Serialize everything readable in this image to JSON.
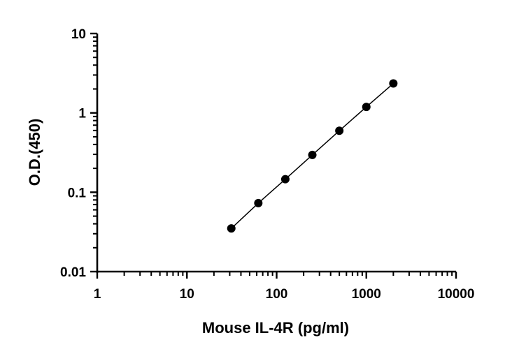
{
  "chart_data": {
    "type": "scatter",
    "title": "",
    "xlabel": "Mouse IL-4R (pg/ml)",
    "ylabel": "O.D.(450)",
    "xscale": "log",
    "yscale": "log",
    "xlim": [
      1,
      10000
    ],
    "ylim": [
      0.01,
      10
    ],
    "xticks": [
      1,
      10,
      100,
      1000,
      10000
    ],
    "xtick_labels": [
      "1",
      "10",
      "100",
      "1000",
      "10000"
    ],
    "yticks": [
      0.01,
      0.1,
      1,
      10
    ],
    "ytick_labels": [
      "0.01",
      "0.1",
      "1",
      "10"
    ],
    "grid": false,
    "legend": "none",
    "series": [
      {
        "marker": "circle",
        "color": "#000000",
        "line": "fitted",
        "x": [
          31.25,
          62.5,
          125,
          250,
          500,
          1000,
          2000
        ],
        "y": [
          0.035,
          0.073,
          0.146,
          0.295,
          0.595,
          1.19,
          2.35
        ]
      }
    ]
  }
}
